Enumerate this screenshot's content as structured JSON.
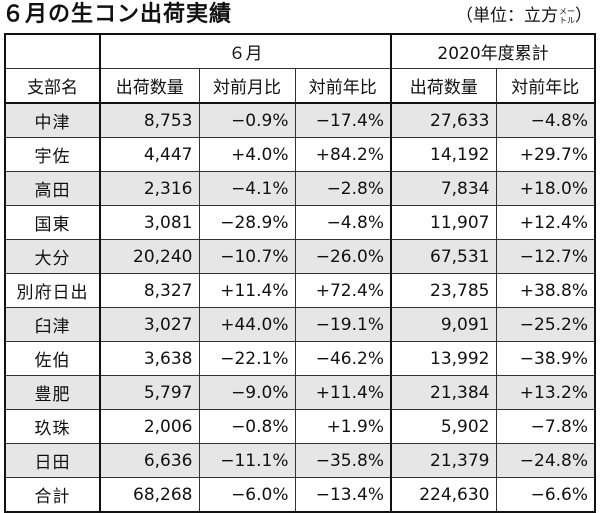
{
  "title": "６月の生コン出荷実績",
  "unit_note": {
    "prefix": "（単位：立方",
    "meter_top": "メー",
    "meter_bottom": "トル",
    "suffix": "）"
  },
  "groups": {
    "month": "６月",
    "cumulative": "2020年度累計"
  },
  "headers": {
    "branch": "支部名",
    "month_volume": "出荷数量",
    "month_mom": "対前月比",
    "month_yoy": "対前年比",
    "cum_volume": "出荷数量",
    "cum_yoy": "対前年比"
  },
  "rows": [
    {
      "name": "中津",
      "volume": "8,753",
      "mom": "−0.9%",
      "yoy": "−17.4%",
      "cum_volume": "27,633",
      "cum_yoy": "−4.8%"
    },
    {
      "name": "宇佐",
      "volume": "4,447",
      "mom": "+4.0%",
      "yoy": "+84.2%",
      "cum_volume": "14,192",
      "cum_yoy": "+29.7%"
    },
    {
      "name": "高田",
      "volume": "2,316",
      "mom": "−4.1%",
      "yoy": "−2.8%",
      "cum_volume": "7,834",
      "cum_yoy": "+18.0%"
    },
    {
      "name": "国東",
      "volume": "3,081",
      "mom": "−28.9%",
      "yoy": "−4.8%",
      "cum_volume": "11,907",
      "cum_yoy": "+12.4%"
    },
    {
      "name": "大分",
      "volume": "20,240",
      "mom": "−10.7%",
      "yoy": "−26.0%",
      "cum_volume": "67,531",
      "cum_yoy": "−12.7%"
    },
    {
      "name": "別府日出",
      "volume": "8,327",
      "mom": "+11.4%",
      "yoy": "+72.4%",
      "cum_volume": "23,785",
      "cum_yoy": "+38.8%"
    },
    {
      "name": "臼津",
      "volume": "3,027",
      "mom": "+44.0%",
      "yoy": "−19.1%",
      "cum_volume": "9,091",
      "cum_yoy": "−25.2%"
    },
    {
      "name": "佐伯",
      "volume": "3,638",
      "mom": "−22.1%",
      "yoy": "−46.2%",
      "cum_volume": "13,992",
      "cum_yoy": "−38.9%"
    },
    {
      "name": "豊肥",
      "volume": "5,797",
      "mom": "−9.0%",
      "yoy": "+11.4%",
      "cum_volume": "21,384",
      "cum_yoy": "+13.2%"
    },
    {
      "name": "玖珠",
      "volume": "2,006",
      "mom": "−0.8%",
      "yoy": "+1.9%",
      "cum_volume": "5,902",
      "cum_yoy": "−7.8%"
    },
    {
      "name": "日田",
      "volume": "6,636",
      "mom": "−11.1%",
      "yoy": "−35.8%",
      "cum_volume": "21,379",
      "cum_yoy": "−24.8%"
    }
  ],
  "total": {
    "name": "合計",
    "volume": "68,268",
    "mom": "−6.0%",
    "yoy": "−13.4%",
    "cum_volume": "224,630",
    "cum_yoy": "−6.6%"
  },
  "colors": {
    "band": "#e6e6e6",
    "border": "#333333"
  }
}
